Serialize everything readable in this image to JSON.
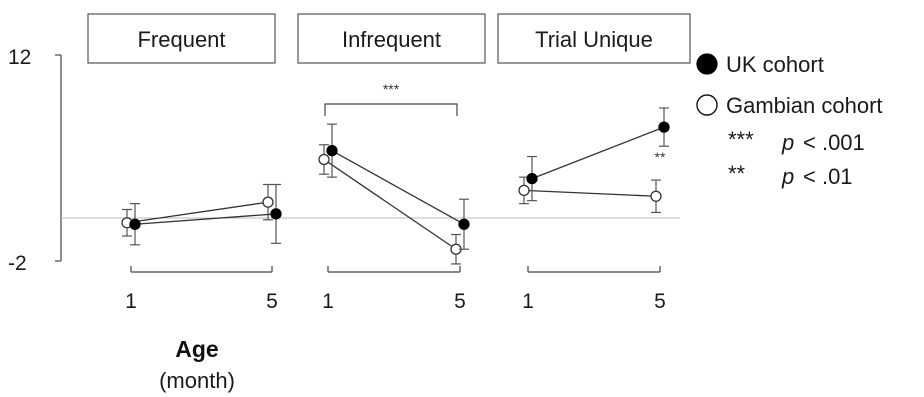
{
  "chart_data": {
    "type": "line",
    "y_axis": {
      "ylim": [
        -2,
        12
      ],
      "tick_labels": [
        "12",
        "-2"
      ]
    },
    "x_axis": {
      "label": "Age",
      "sublabel": "(month)",
      "categories": [
        "1",
        "5"
      ]
    },
    "reference_line": {
      "y": 0
    },
    "panels": [
      {
        "name": "Frequent",
        "series": [
          {
            "name": "UK cohort",
            "marker": "filled",
            "values": [
              0.5,
              1.2
            ],
            "errors": [
              1.4,
              2.0
            ]
          },
          {
            "name": "Gambian cohort",
            "marker": "open",
            "values": [
              0.6,
              2.0
            ],
            "errors": [
              0.9,
              1.2
            ]
          }
        ]
      },
      {
        "name": "Infrequent",
        "series": [
          {
            "name": "UK cohort",
            "marker": "filled",
            "values": [
              5.5,
              0.5
            ],
            "errors": [
              1.8,
              1.7
            ]
          },
          {
            "name": "Gambian cohort",
            "marker": "open",
            "values": [
              4.9,
              -1.2
            ],
            "errors": [
              1.0,
              1.0
            ]
          }
        ],
        "significance": {
          "label": "***",
          "span": "1-5"
        }
      },
      {
        "name": "Trial Unique",
        "series": [
          {
            "name": "UK cohort",
            "marker": "filled",
            "values": [
              3.6,
              7.1
            ],
            "errors": [
              1.5,
              1.3
            ]
          },
          {
            "name": "Gambian cohort",
            "marker": "open",
            "values": [
              2.8,
              2.4
            ],
            "errors": [
              0.9,
              1.1
            ]
          }
        ],
        "significance": {
          "label": "**",
          "at": "5"
        }
      }
    ],
    "legend": {
      "placement": "right",
      "entries": [
        {
          "label": "UK cohort",
          "marker": "filled"
        },
        {
          "label": "Gambian cohort",
          "marker": "open"
        }
      ],
      "notes": [
        {
          "stars": "***",
          "text_p": "p",
          "text_rest": "< .001"
        },
        {
          "stars": "**",
          "text_p": "p",
          "text_rest": "< .01"
        }
      ]
    }
  }
}
